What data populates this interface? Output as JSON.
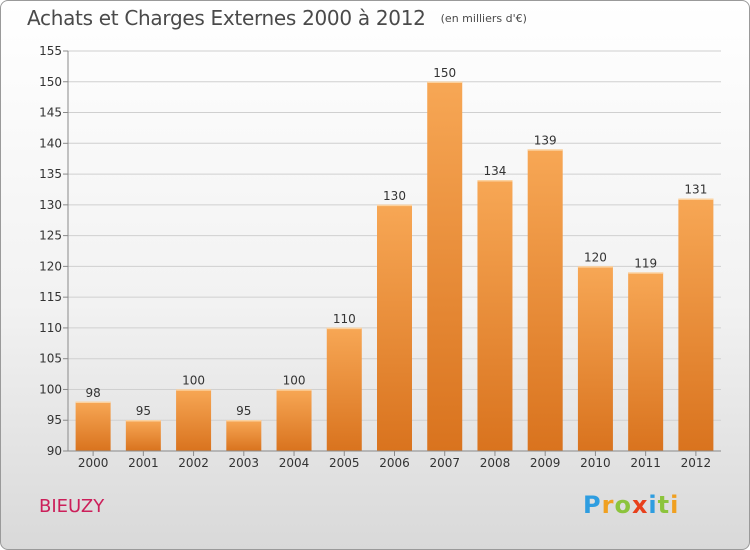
{
  "header": {
    "title": "Achats et Charges Externes 2000 à 2012",
    "unit": "(en milliers d'€)"
  },
  "footer": {
    "commune": "BIEUZY",
    "logo": {
      "text": "Proxiti",
      "letters": [
        {
          "ch": "P",
          "color": "#2e9de0"
        },
        {
          "ch": "r",
          "color": "#f0a020"
        },
        {
          "ch": "o",
          "color": "#8cc43c"
        },
        {
          "ch": "x",
          "color": "#e8401c"
        },
        {
          "ch": "i",
          "color": "#2e9de0"
        },
        {
          "ch": "t",
          "color": "#8cc43c"
        },
        {
          "ch": "i",
          "color": "#f0a020"
        }
      ]
    }
  },
  "chart_data": {
    "type": "bar",
    "categories": [
      "2000",
      "2001",
      "2002",
      "2003",
      "2004",
      "2005",
      "2006",
      "2007",
      "2008",
      "2009",
      "2010",
      "2011",
      "2012"
    ],
    "values": [
      98,
      95,
      100,
      95,
      100,
      110,
      130,
      150,
      134,
      139,
      120,
      119,
      131
    ],
    "title": "Achats et Charges Externes 2000 à 2012",
    "ylim": [
      90,
      155
    ],
    "yticks": [
      90,
      95,
      100,
      105,
      110,
      115,
      120,
      125,
      130,
      135,
      140,
      145,
      150,
      155
    ],
    "grid": true,
    "colors": {
      "bar_top": "#f7a755",
      "bar_bottom": "#d9731e",
      "grid": "#d0d0d0",
      "axis": "#8a8a8a",
      "text": "#333333"
    }
  }
}
